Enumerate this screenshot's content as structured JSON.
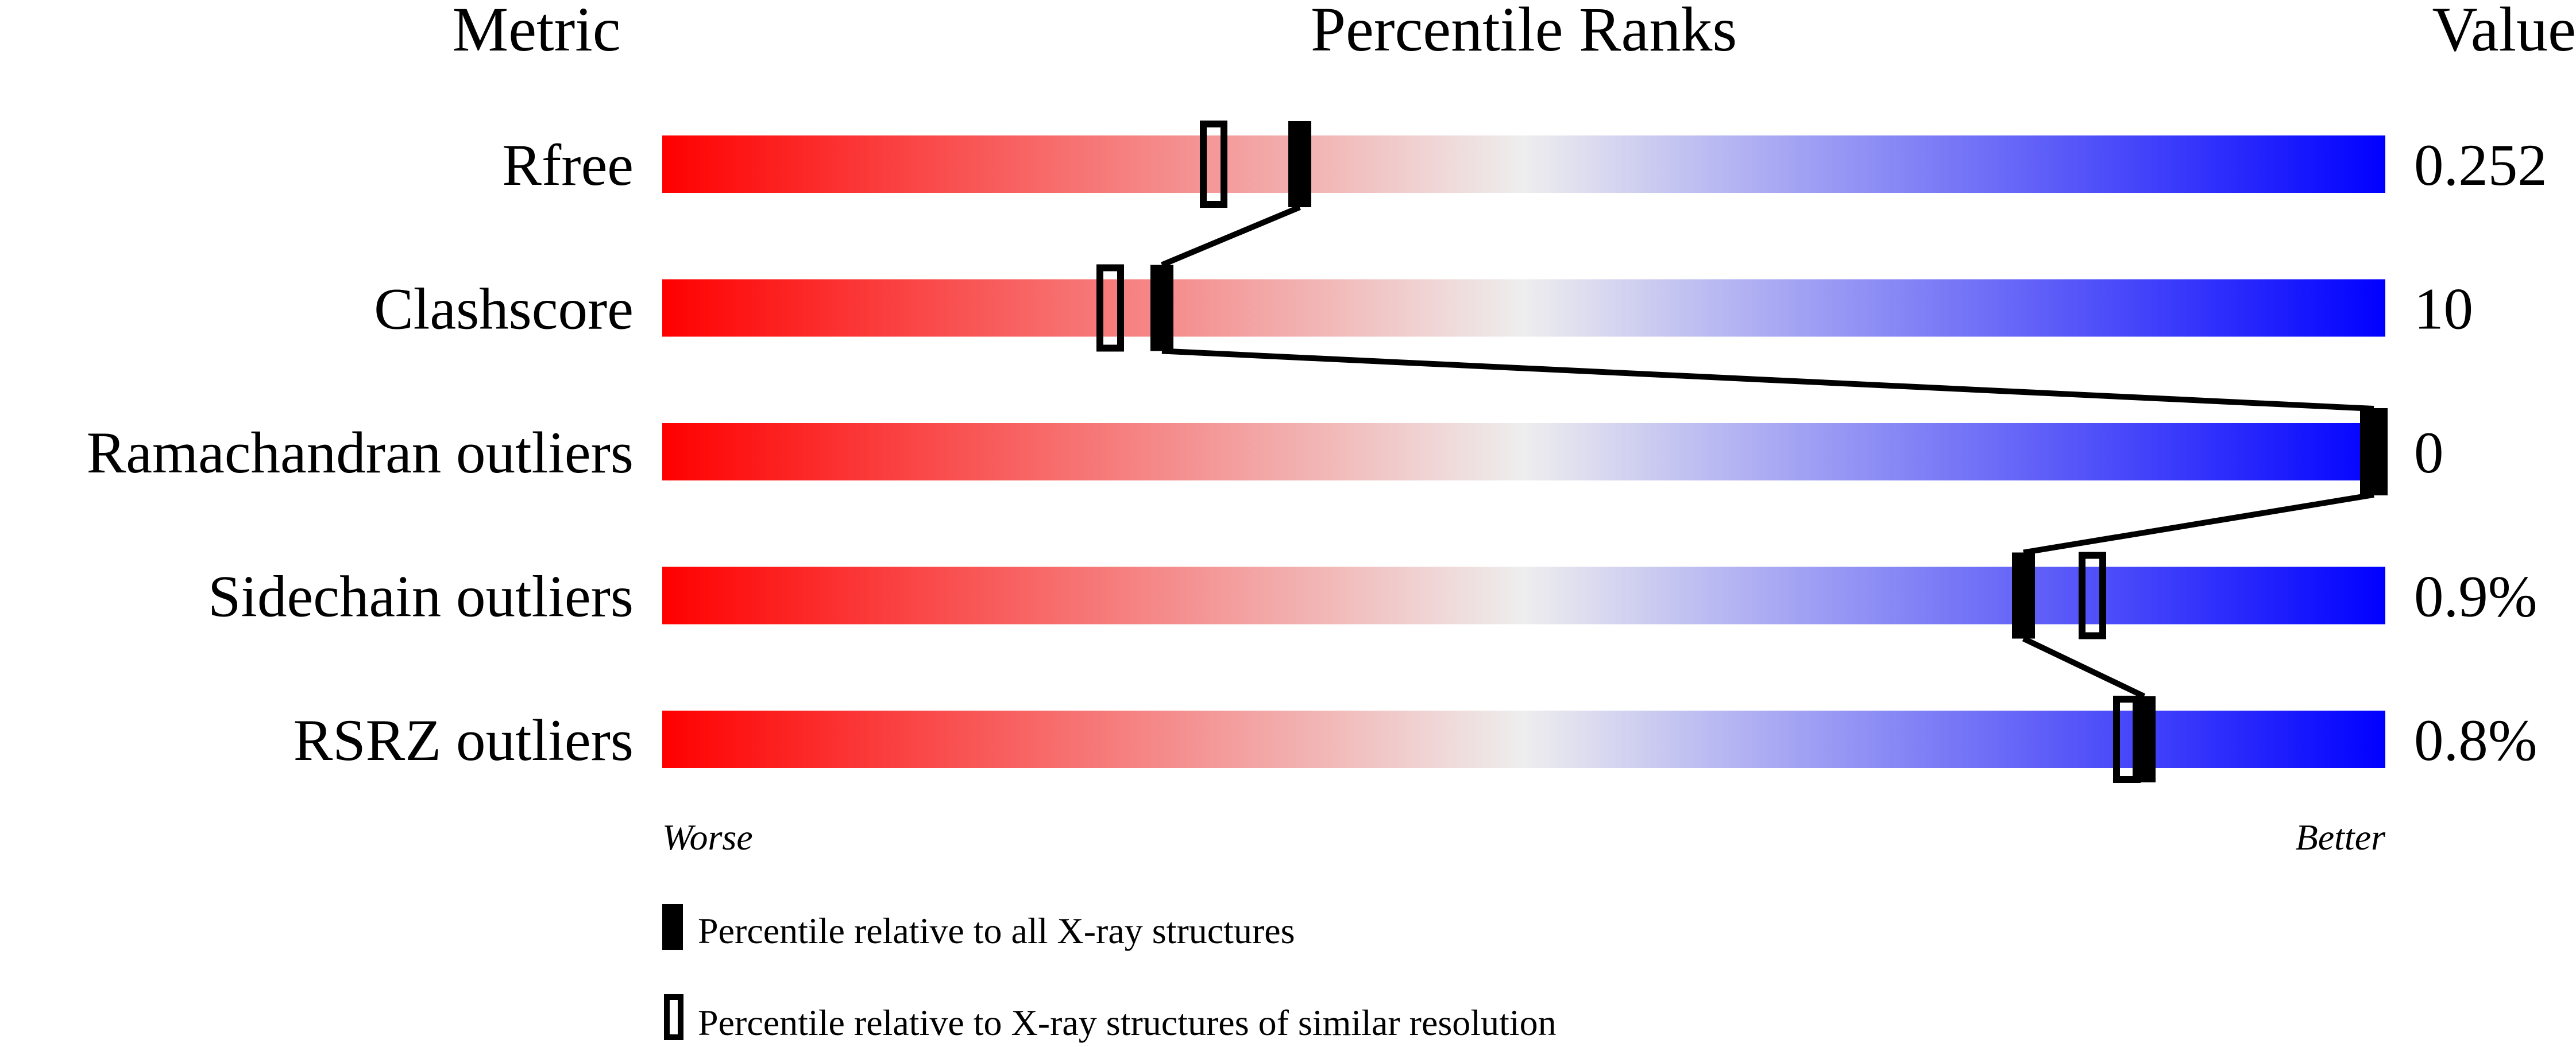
{
  "chart_data": {
    "type": "percentile-slider",
    "headers": {
      "metric": "Metric",
      "ranks": "Percentile Ranks",
      "value": "Value"
    },
    "axis": {
      "min": 0,
      "max": 100,
      "left_label": "Worse",
      "right_label": "Better"
    },
    "gradient_colors": {
      "worse": "#ff0000",
      "middle": "#eeeeee",
      "better": "#0000ff"
    },
    "metrics": [
      {
        "name": "Rfree",
        "value": "0.252",
        "percentile_all": 37,
        "percentile_similar": 32
      },
      {
        "name": "Clashscore",
        "value": "10",
        "percentile_all": 29,
        "percentile_similar": 26
      },
      {
        "name": "Ramachandran outliers",
        "value": "0",
        "percentile_all": 100,
        "percentile_similar": 100
      },
      {
        "name": "Sidechain outliers",
        "value": "0.9%",
        "percentile_all": 79,
        "percentile_similar": 83
      },
      {
        "name": "RSRZ outliers",
        "value": "0.8%",
        "percentile_all": 86,
        "percentile_similar": 85
      }
    ],
    "legend": {
      "filled": "Percentile relative to all X-ray structures",
      "open": "Percentile relative to X-ray structures of similar resolution"
    }
  }
}
